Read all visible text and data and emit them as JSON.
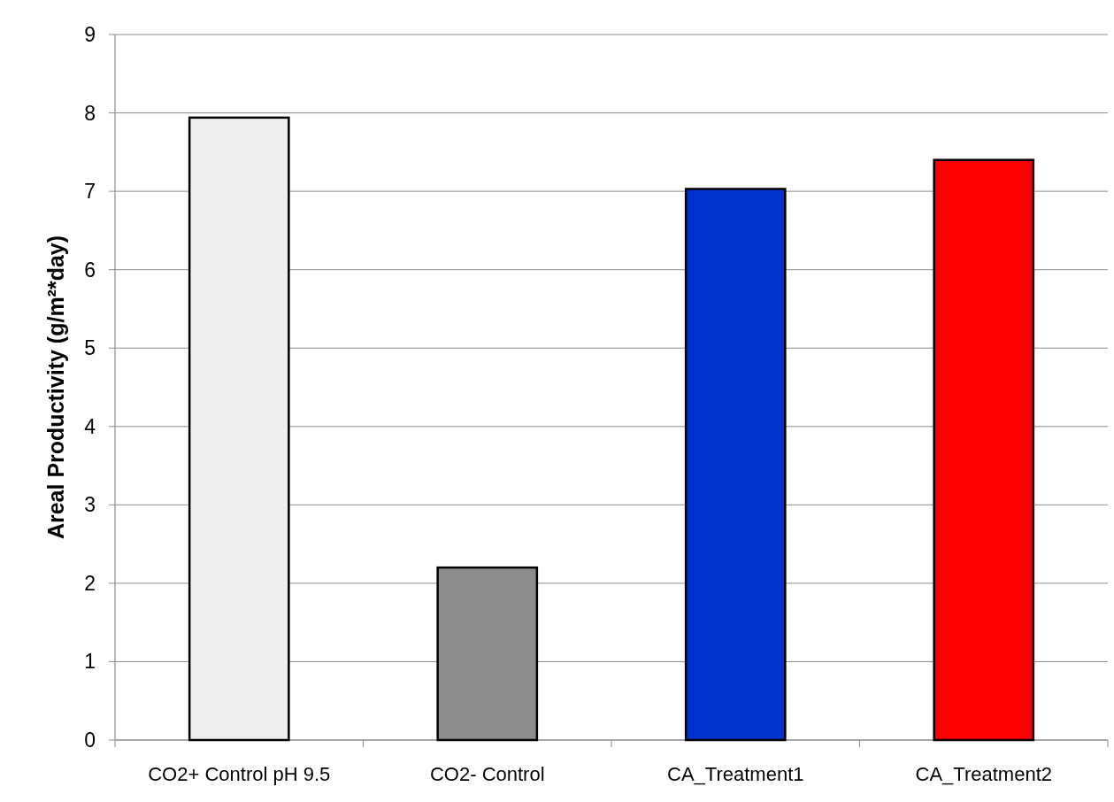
{
  "chart_data": {
    "type": "bar",
    "ylabel": "Areal Productivity (g/m²*day)",
    "categories": [
      "CO2+ Control pH 9.5",
      "CO2- Control",
      "CA_Treatment1",
      "CA_Treatment2"
    ],
    "values": [
      7.94,
      2.2,
      7.03,
      7.4
    ],
    "colors": [
      "#eeeeee",
      "#8c8c8c",
      "#0033cc",
      "#ff0000"
    ],
    "ylim": [
      0,
      9
    ],
    "yticks": [
      0,
      1,
      2,
      3,
      4,
      5,
      6,
      7,
      8,
      9
    ],
    "grid": "y"
  }
}
